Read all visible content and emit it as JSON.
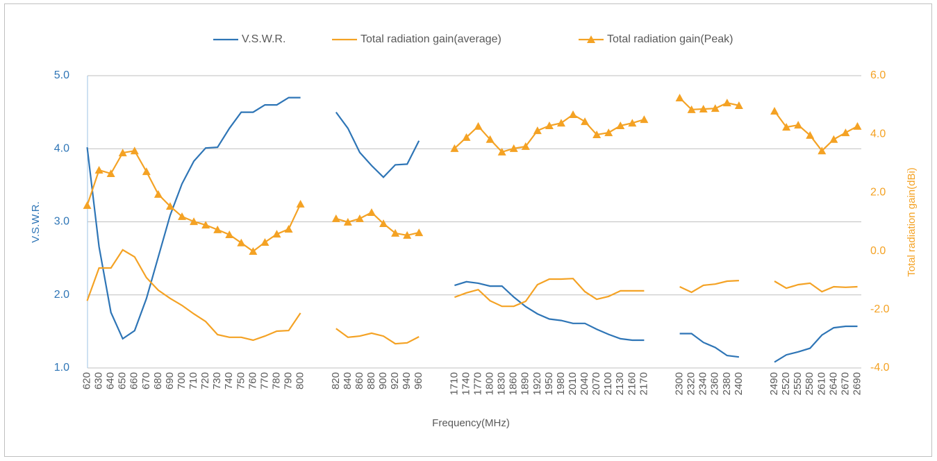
{
  "chart_data": {
    "type": "line",
    "categories": [
      "620",
      "630",
      "640",
      "650",
      "660",
      "670",
      "680",
      "690",
      "700",
      "710",
      "720",
      "730",
      "740",
      "750",
      "760",
      "770",
      "780",
      "790",
      "800",
      null,
      null,
      "820",
      "840",
      "860",
      "880",
      "900",
      "920",
      "940",
      "960",
      null,
      null,
      "1710",
      "1740",
      "1770",
      "1800",
      "1830",
      "1860",
      "1890",
      "1920",
      "1950",
      "1980",
      "2010",
      "2040",
      "2070",
      "2100",
      "2130",
      "2160",
      "2170",
      null,
      null,
      "2300",
      "2320",
      "2340",
      "2360",
      "2380",
      "2400",
      null,
      null,
      "2490",
      "2520",
      "2550",
      "2580",
      "2610",
      "2640",
      "2670",
      "2690"
    ],
    "series": [
      {
        "name": "V.S.W.R.",
        "color": "#2e75b6",
        "axis": "y",
        "marker": "none",
        "values": [
          4.02,
          2.66,
          1.76,
          1.4,
          1.51,
          1.95,
          2.52,
          3.09,
          3.52,
          3.83,
          4.01,
          4.02,
          4.28,
          4.5,
          4.5,
          4.6,
          4.6,
          4.7,
          4.7,
          null,
          null,
          4.5,
          4.28,
          3.95,
          3.77,
          3.61,
          3.78,
          3.79,
          4.11,
          null,
          null,
          2.13,
          2.18,
          2.16,
          2.12,
          2.12,
          1.97,
          1.84,
          1.74,
          1.67,
          1.65,
          1.61,
          1.61,
          1.53,
          1.46,
          1.4,
          1.38,
          1.38,
          null,
          null,
          1.47,
          1.47,
          1.35,
          1.28,
          1.17,
          1.15,
          null,
          null,
          1.08,
          1.18,
          1.22,
          1.27,
          1.45,
          1.55,
          1.57,
          1.57
        ]
      },
      {
        "name": "Total radiation gain(average)",
        "color": "#f4a224",
        "axis": "y2",
        "marker": "none",
        "values": [
          -1.7,
          -0.58,
          -0.58,
          0.04,
          -0.2,
          -0.91,
          -1.34,
          -1.62,
          -1.86,
          -2.15,
          -2.41,
          -2.86,
          -2.95,
          -2.95,
          -3.05,
          -2.91,
          -2.74,
          -2.72,
          -2.12,
          null,
          null,
          -2.65,
          -2.95,
          -2.91,
          -2.81,
          -2.91,
          -3.17,
          -3.14,
          -2.93,
          null,
          null,
          -1.58,
          -1.43,
          -1.32,
          -1.7,
          -1.89,
          -1.89,
          -1.72,
          -1.15,
          -0.96,
          -0.96,
          -0.94,
          -1.39,
          -1.65,
          -1.55,
          -1.36,
          -1.36,
          -1.36,
          null,
          null,
          -1.22,
          -1.41,
          -1.17,
          -1.13,
          -1.03,
          -1.01,
          null,
          null,
          -1.03,
          -1.27,
          -1.15,
          -1.1,
          -1.39,
          -1.22,
          -1.24,
          -1.22
        ]
      },
      {
        "name": "Total radiation gain(Peak)",
        "color": "#f4a224",
        "axis": "y2",
        "marker": "triangle",
        "values": [
          1.56,
          2.77,
          2.65,
          3.36,
          3.43,
          2.72,
          1.94,
          1.53,
          1.18,
          1.01,
          0.89,
          0.73,
          0.56,
          0.28,
          -0.01,
          0.3,
          0.58,
          0.75,
          1.61,
          null,
          null,
          1.11,
          0.99,
          1.11,
          1.32,
          0.94,
          0.61,
          0.54,
          0.63,
          null,
          null,
          3.51,
          3.89,
          4.27,
          3.82,
          3.39,
          3.51,
          3.58,
          4.12,
          4.29,
          4.38,
          4.67,
          4.43,
          3.98,
          4.05,
          4.29,
          4.38,
          4.5,
          null,
          null,
          5.24,
          4.84,
          4.86,
          4.88,
          5.07,
          4.98,
          null,
          null,
          4.79,
          4.24,
          4.31,
          3.96,
          3.43,
          3.82,
          4.05,
          4.27
        ]
      }
    ],
    "x_label": "Frequency(MHz)",
    "y_label": "V.S.W.R.",
    "y2_label": "Total radiation gain(dBi)",
    "ylim": [
      1,
      5
    ],
    "yticks": [
      {
        "value": 1,
        "label": "1.0"
      },
      {
        "value": 2,
        "label": "2.0"
      },
      {
        "value": 3,
        "label": "3.0"
      },
      {
        "value": 4,
        "label": "4.0"
      },
      {
        "value": 5,
        "label": "5.0"
      }
    ],
    "y2lim": [
      -4,
      6
    ],
    "y2ticks": [
      {
        "value": -4,
        "label": "-4.0"
      },
      {
        "value": -2,
        "label": "-2.0"
      },
      {
        "value": 0,
        "label": "0.0"
      },
      {
        "value": 2,
        "label": "2.0"
      },
      {
        "value": 4,
        "label": "4.0"
      },
      {
        "value": 6,
        "label": "6.0"
      }
    ],
    "grid": true,
    "legend": "top"
  }
}
